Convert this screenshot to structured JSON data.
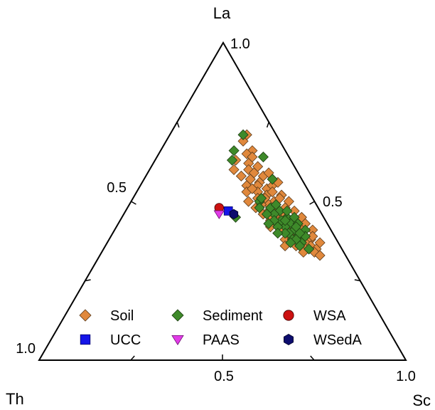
{
  "chart_data": {
    "type": "scatter",
    "subtype": "ternary",
    "title": "",
    "axes": {
      "top": {
        "label": "La",
        "max_label": "1.0",
        "mid_label": "0.5"
      },
      "left": {
        "label": "Th",
        "max_label": "1.0"
      },
      "right": {
        "label": "Sc",
        "max_label": "1.0",
        "mid_label": "0.5"
      },
      "bottom_mid_label": "0.5"
    },
    "grid": false,
    "legend_position": "bottom-inside",
    "series": [
      {
        "name": "Soil",
        "marker": "diamond",
        "color": "#E0883C",
        "stroke": "#5a3a1a",
        "points": [
          [
            0.71,
            0.08,
            0.21
          ],
          [
            0.69,
            0.1,
            0.21
          ],
          [
            0.66,
            0.09,
            0.25
          ],
          [
            0.65,
            0.11,
            0.24
          ],
          [
            0.64,
            0.1,
            0.26
          ],
          [
            0.62,
            0.12,
            0.26
          ],
          [
            0.61,
            0.1,
            0.29
          ],
          [
            0.6,
            0.13,
            0.27
          ],
          [
            0.59,
            0.12,
            0.29
          ],
          [
            0.58,
            0.1,
            0.32
          ],
          [
            0.57,
            0.14,
            0.29
          ],
          [
            0.56,
            0.12,
            0.32
          ],
          [
            0.55,
            0.13,
            0.32
          ],
          [
            0.54,
            0.11,
            0.35
          ],
          [
            0.53,
            0.14,
            0.33
          ],
          [
            0.52,
            0.12,
            0.36
          ],
          [
            0.51,
            0.13,
            0.36
          ],
          [
            0.5,
            0.11,
            0.39
          ],
          [
            0.49,
            0.13,
            0.38
          ],
          [
            0.48,
            0.12,
            0.4
          ],
          [
            0.47,
            0.1,
            0.43
          ],
          [
            0.46,
            0.12,
            0.42
          ],
          [
            0.45,
            0.11,
            0.44
          ],
          [
            0.44,
            0.09,
            0.47
          ],
          [
            0.43,
            0.11,
            0.46
          ],
          [
            0.42,
            0.1,
            0.48
          ],
          [
            0.41,
            0.08,
            0.51
          ],
          [
            0.4,
            0.1,
            0.5
          ],
          [
            0.39,
            0.09,
            0.52
          ],
          [
            0.38,
            0.07,
            0.55
          ],
          [
            0.37,
            0.09,
            0.54
          ],
          [
            0.36,
            0.08,
            0.56
          ],
          [
            0.35,
            0.07,
            0.58
          ],
          [
            0.34,
            0.08,
            0.58
          ],
          [
            0.33,
            0.07,
            0.6
          ],
          [
            0.55,
            0.16,
            0.29
          ],
          [
            0.53,
            0.17,
            0.3
          ],
          [
            0.5,
            0.18,
            0.32
          ],
          [
            0.48,
            0.17,
            0.35
          ],
          [
            0.46,
            0.16,
            0.38
          ],
          [
            0.44,
            0.15,
            0.41
          ],
          [
            0.42,
            0.16,
            0.42
          ],
          [
            0.4,
            0.15,
            0.45
          ],
          [
            0.38,
            0.14,
            0.48
          ],
          [
            0.36,
            0.12,
            0.52
          ],
          [
            0.57,
            0.08,
            0.35
          ],
          [
            0.55,
            0.09,
            0.36
          ],
          [
            0.52,
            0.08,
            0.4
          ],
          [
            0.5,
            0.07,
            0.43
          ],
          [
            0.47,
            0.07,
            0.46
          ],
          [
            0.45,
            0.06,
            0.49
          ],
          [
            0.43,
            0.06,
            0.51
          ],
          [
            0.41,
            0.05,
            0.54
          ],
          [
            0.39,
            0.06,
            0.55
          ],
          [
            0.37,
            0.05,
            0.58
          ],
          [
            0.63,
            0.15,
            0.22
          ],
          [
            0.6,
            0.17,
            0.23
          ],
          [
            0.58,
            0.16,
            0.26
          ],
          [
            0.54,
            0.15,
            0.31
          ],
          [
            0.51,
            0.15,
            0.34
          ],
          [
            0.49,
            0.15,
            0.36
          ],
          [
            0.47,
            0.14,
            0.39
          ],
          [
            0.45,
            0.14,
            0.41
          ],
          [
            0.43,
            0.13,
            0.44
          ],
          [
            0.41,
            0.13,
            0.46
          ],
          [
            0.39,
            0.12,
            0.49
          ],
          [
            0.37,
            0.11,
            0.52
          ],
          [
            0.35,
            0.1,
            0.55
          ],
          [
            0.34,
            0.11,
            0.55
          ],
          [
            0.36,
            0.15,
            0.49
          ],
          [
            0.59,
            0.08,
            0.33
          ],
          [
            0.56,
            0.07,
            0.37
          ],
          [
            0.53,
            0.1,
            0.37
          ],
          [
            0.51,
            0.09,
            0.4
          ],
          [
            0.48,
            0.09,
            0.43
          ]
        ]
      },
      {
        "name": "Sediment",
        "marker": "diamond",
        "color": "#3E8A2A",
        "stroke": "#1d3d12",
        "points": [
          [
            0.71,
            0.09,
            0.2
          ],
          [
            0.66,
            0.14,
            0.2
          ],
          [
            0.63,
            0.16,
            0.21
          ],
          [
            0.64,
            0.07,
            0.29
          ],
          [
            0.57,
            0.08,
            0.35
          ],
          [
            0.5,
            0.15,
            0.35
          ],
          [
            0.48,
            0.13,
            0.39
          ],
          [
            0.47,
            0.11,
            0.42
          ],
          [
            0.46,
            0.13,
            0.41
          ],
          [
            0.45,
            0.1,
            0.45
          ],
          [
            0.44,
            0.12,
            0.44
          ],
          [
            0.43,
            0.1,
            0.47
          ],
          [
            0.42,
            0.12,
            0.46
          ],
          [
            0.41,
            0.1,
            0.49
          ],
          [
            0.4,
            0.12,
            0.48
          ],
          [
            0.39,
            0.1,
            0.51
          ],
          [
            0.38,
            0.12,
            0.5
          ],
          [
            0.37,
            0.1,
            0.53
          ],
          [
            0.46,
            0.15,
            0.39
          ],
          [
            0.44,
            0.14,
            0.42
          ],
          [
            0.42,
            0.14,
            0.44
          ],
          [
            0.4,
            0.13,
            0.47
          ],
          [
            0.38,
            0.11,
            0.51
          ],
          [
            0.36,
            0.11,
            0.53
          ],
          [
            0.49,
            0.11,
            0.4
          ],
          [
            0.47,
            0.09,
            0.44
          ],
          [
            0.45,
            0.08,
            0.47
          ],
          [
            0.43,
            0.08,
            0.49
          ],
          [
            0.41,
            0.07,
            0.52
          ],
          [
            0.39,
            0.08,
            0.53
          ],
          [
            0.45,
            0.24,
            0.31
          ],
          [
            0.51,
            0.14,
            0.35
          ],
          [
            0.48,
            0.16,
            0.36
          ],
          [
            0.43,
            0.16,
            0.41
          ],
          [
            0.4,
            0.15,
            0.45
          ],
          [
            0.37,
            0.13,
            0.5
          ],
          [
            0.35,
            0.09,
            0.56
          ],
          [
            0.44,
            0.11,
            0.45
          ],
          [
            0.42,
            0.09,
            0.49
          ],
          [
            0.4,
            0.09,
            0.51
          ]
        ]
      },
      {
        "name": "WSA",
        "marker": "circle",
        "color": "#CC1111",
        "stroke": "#440000",
        "points": [
          [
            0.48,
            0.27,
            0.25
          ]
        ]
      },
      {
        "name": "UCC",
        "marker": "square",
        "color": "#1515E8",
        "stroke": "#000066",
        "points": [
          [
            0.47,
            0.25,
            0.28
          ]
        ]
      },
      {
        "name": "PAAS",
        "marker": "triangle-down",
        "color": "#E23BE8",
        "stroke": "#6a106e",
        "points": [
          [
            0.46,
            0.28,
            0.26
          ]
        ]
      },
      {
        "name": "WSedA",
        "marker": "hexagon",
        "color": "#0D0D6E",
        "stroke": "#000022",
        "points": [
          [
            0.46,
            0.24,
            0.3
          ]
        ]
      }
    ]
  }
}
